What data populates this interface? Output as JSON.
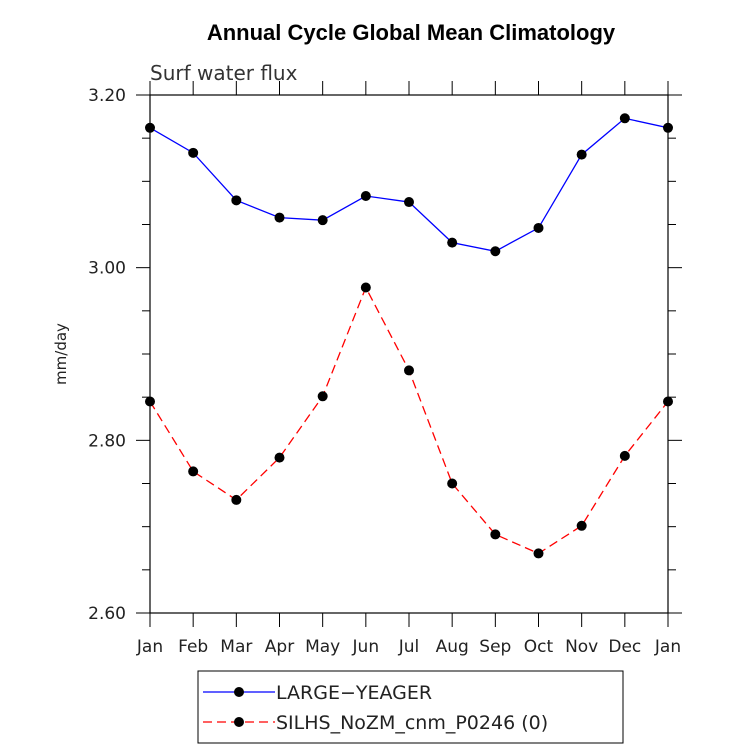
{
  "chart_data": {
    "type": "line",
    "title": "Annual Cycle Global Mean Climatology",
    "subtitle": "Surf water flux",
    "xlabel": "",
    "ylabel": "mm/day",
    "categories": [
      "Jan",
      "Feb",
      "Mar",
      "Apr",
      "May",
      "Jun",
      "Jul",
      "Aug",
      "Sep",
      "Oct",
      "Nov",
      "Dec",
      "Jan"
    ],
    "ylim": [
      2.6,
      3.2
    ],
    "yticks": [
      2.6,
      2.8,
      3.0,
      3.2
    ],
    "ytick_labels": [
      "2.60",
      "2.80",
      "3.00",
      "3.20"
    ],
    "grid": false,
    "legend_position": "bottom",
    "series": [
      {
        "name": "LARGE−YEAGER",
        "color": "#0000ff",
        "dashed": false,
        "values": [
          3.162,
          3.133,
          3.078,
          3.058,
          3.055,
          3.083,
          3.076,
          3.029,
          3.019,
          3.046,
          3.131,
          3.173,
          3.162
        ]
      },
      {
        "name": "SILHS_NoZM_cnm_P0246 (0)",
        "color": "#ff0000",
        "dashed": true,
        "values": [
          2.845,
          2.764,
          2.731,
          2.78,
          2.851,
          2.977,
          2.881,
          2.75,
          2.691,
          2.669,
          2.701,
          2.782,
          2.845
        ]
      }
    ]
  }
}
